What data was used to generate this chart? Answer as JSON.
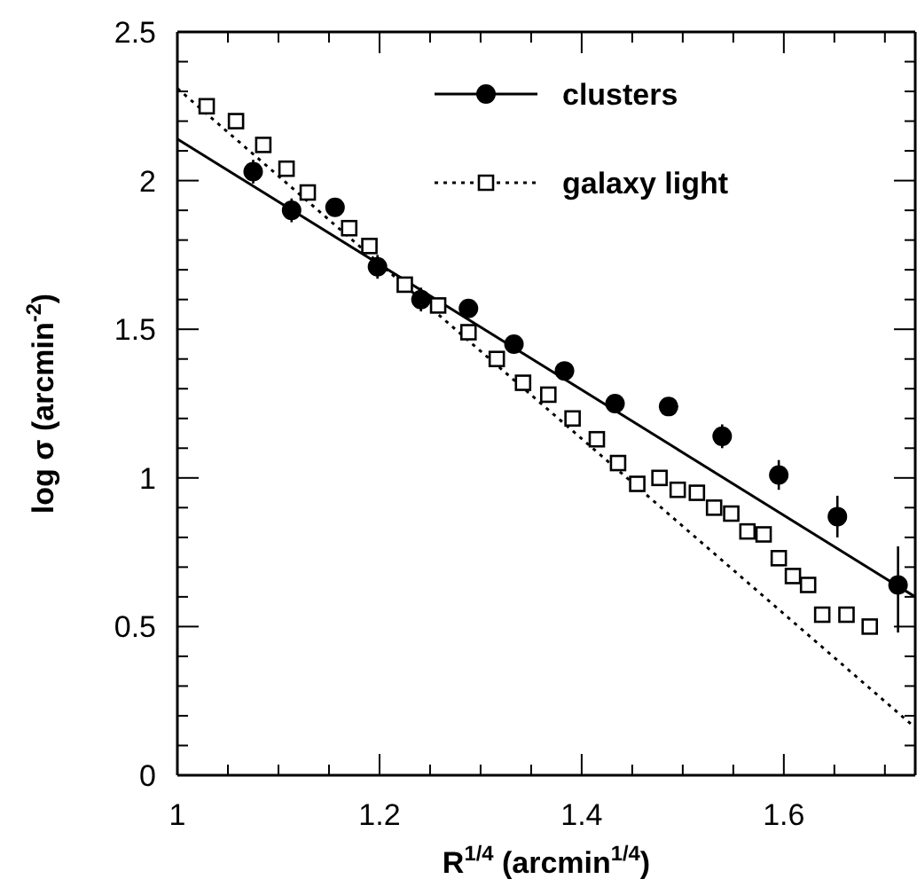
{
  "chart_data": {
    "type": "scatter",
    "xlabel": "R$^{1/4}$ (arcmin$^{1/4}$)",
    "ylabel": "log σ (arcmin$^{-2}$)",
    "xlim": [
      1,
      1.73
    ],
    "ylim": [
      0,
      2.5
    ],
    "xticks": [
      1,
      {
        "value": 1.05,
        "label": null
      },
      {
        "value": 1.1,
        "label": null
      },
      {
        "value": 1.15,
        "label": null
      },
      1.2,
      {
        "value": 1.25,
        "label": null
      },
      {
        "value": 1.3,
        "label": null
      },
      {
        "value": 1.35,
        "label": null
      },
      1.4,
      {
        "value": 1.45,
        "label": null
      },
      {
        "value": 1.5,
        "label": null
      },
      {
        "value": 1.55,
        "label": null
      },
      1.6,
      {
        "value": 1.65,
        "label": null
      },
      {
        "value": 1.7,
        "label": null
      }
    ],
    "yticks": [
      0,
      {
        "value": 0.1,
        "label": null
      },
      {
        "value": 0.2,
        "label": null
      },
      {
        "value": 0.3,
        "label": null
      },
      {
        "value": 0.4,
        "label": null
      },
      0.5,
      {
        "value": 0.6,
        "label": null
      },
      {
        "value": 0.7,
        "label": null
      },
      {
        "value": 0.8,
        "label": null
      },
      {
        "value": 0.9,
        "label": null
      },
      1,
      {
        "value": 1.1,
        "label": null
      },
      {
        "value": 1.2,
        "label": null
      },
      {
        "value": 1.3,
        "label": null
      },
      {
        "value": 1.4,
        "label": null
      },
      1.5,
      {
        "value": 1.6,
        "label": null
      },
      {
        "value": 1.7,
        "label": null
      },
      {
        "value": 1.8,
        "label": null
      },
      {
        "value": 1.9,
        "label": null
      },
      2,
      {
        "value": 2.1,
        "label": null
      },
      {
        "value": 2.2,
        "label": null
      },
      {
        "value": 2.3,
        "label": null
      },
      {
        "value": 2.4,
        "label": null
      },
      2.5
    ],
    "grid": false,
    "legend": "top right",
    "series": [
      {
        "name": "clusters",
        "type": "scatter",
        "marker": "circle",
        "line_style": "solid",
        "color": "#000000",
        "x": [
          1.075,
          1.113,
          1.156,
          1.198,
          1.241,
          1.288,
          1.333,
          1.383,
          1.433,
          1.486,
          1.539,
          1.595,
          1.653,
          1.713
        ],
        "values": [
          2.03,
          1.9,
          1.91,
          1.71,
          1.6,
          1.57,
          1.45,
          1.36,
          1.25,
          1.24,
          1.14,
          1.01,
          0.87,
          0.64
        ],
        "errors": [
          0.04,
          0.04,
          0.03,
          0.04,
          0.04,
          0.03,
          0.03,
          0.03,
          0.03,
          0.03,
          0.04,
          0.05,
          0.07,
          [
            0.48,
            0.77
          ]
        ]
      },
      {
        "name": "galaxy light",
        "type": "scatter",
        "marker": "square",
        "line_style": "dotted",
        "color": "#000000",
        "x": [
          1.029,
          1.058,
          1.085,
          1.108,
          1.129,
          1.17,
          1.19,
          1.225,
          1.258,
          1.288,
          1.316,
          1.342,
          1.367,
          1.391,
          1.415,
          1.436,
          1.455,
          1.477,
          1.495,
          1.514,
          1.531,
          1.548,
          1.564,
          1.58,
          1.595,
          1.609,
          1.624,
          1.638,
          1.662,
          1.685
        ],
        "values": [
          2.25,
          2.2,
          2.12,
          2.04,
          1.96,
          1.84,
          1.78,
          1.65,
          1.58,
          1.49,
          1.4,
          1.32,
          1.28,
          1.2,
          1.13,
          1.05,
          0.98,
          1.0,
          0.96,
          0.95,
          0.9,
          0.88,
          0.82,
          0.81,
          0.73,
          0.67,
          0.64,
          0.54,
          0.54,
          0.5
        ]
      },
      {
        "type": "line",
        "line_style": "solid",
        "marker": "none",
        "color": "#000000",
        "x": [
          1,
          1.73
        ],
        "values": [
          2.14,
          0.6
        ]
      },
      {
        "type": "line",
        "line_style": "dotted",
        "marker": "none",
        "color": "#000000",
        "x": [
          1,
          1.73
        ],
        "values": [
          2.31,
          0.16
        ]
      }
    ]
  }
}
